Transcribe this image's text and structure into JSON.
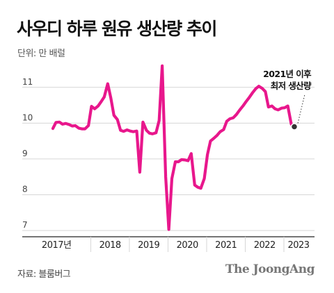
{
  "header": {
    "title": "사우디 하루 원유 생산량 추이",
    "unit": "단위: 만 배럴"
  },
  "footer": {
    "source": "자료: 블룸버그",
    "brand": "The JoongAng"
  },
  "annotation": {
    "line1": "2021년 이후",
    "line2": "최저 생산량"
  },
  "colors": {
    "line": "#e8178c",
    "grid": "#d6d6d6",
    "axis": "#222222"
  },
  "chart_data": {
    "type": "line",
    "title": "사우디 하루 원유 생산량 추이",
    "ylabel": "단위: 만 배럴",
    "xlabel": "",
    "ylim": [
      7,
      11.5
    ],
    "yticks": [
      7,
      8,
      9,
      10,
      11
    ],
    "xlim": [
      2017.0,
      2023.75
    ],
    "x_tick_labels": [
      "2017년",
      "2018",
      "2019",
      "2020",
      "2021",
      "2022",
      "2023"
    ],
    "grid": true,
    "series": [
      {
        "points": [
          [
            2017.0,
            9.85
          ],
          [
            2017.08,
            10.02
          ],
          [
            2017.17,
            10.03
          ],
          [
            2017.25,
            9.97
          ],
          [
            2017.33,
            9.99
          ],
          [
            2017.42,
            9.96
          ],
          [
            2017.5,
            9.92
          ],
          [
            2017.58,
            9.93
          ],
          [
            2017.67,
            9.86
          ],
          [
            2017.75,
            9.84
          ],
          [
            2017.83,
            9.84
          ],
          [
            2017.92,
            9.93
          ],
          [
            2018.0,
            10.47
          ],
          [
            2018.08,
            10.4
          ],
          [
            2018.17,
            10.48
          ],
          [
            2018.25,
            10.6
          ],
          [
            2018.33,
            10.73
          ],
          [
            2018.42,
            11.1
          ],
          [
            2018.5,
            10.7
          ],
          [
            2018.58,
            10.22
          ],
          [
            2018.67,
            10.1
          ],
          [
            2018.75,
            9.8
          ],
          [
            2018.83,
            9.77
          ],
          [
            2018.92,
            9.81
          ],
          [
            2019.0,
            9.78
          ],
          [
            2019.08,
            9.76
          ],
          [
            2019.17,
            9.78
          ],
          [
            2019.25,
            8.63
          ],
          [
            2019.33,
            10.03
          ],
          [
            2019.42,
            9.8
          ],
          [
            2019.5,
            9.72
          ],
          [
            2019.58,
            9.7
          ],
          [
            2019.67,
            9.73
          ],
          [
            2019.75,
            10.07
          ],
          [
            2019.83,
            11.6
          ],
          [
            2019.92,
            8.5
          ],
          [
            2020.0,
            7.03
          ],
          [
            2020.08,
            8.45
          ],
          [
            2020.17,
            8.92
          ],
          [
            2020.25,
            8.92
          ],
          [
            2020.33,
            8.98
          ],
          [
            2020.42,
            8.97
          ],
          [
            2020.5,
            8.95
          ],
          [
            2020.58,
            9.15
          ],
          [
            2020.67,
            8.27
          ],
          [
            2020.75,
            8.21
          ],
          [
            2020.83,
            8.18
          ],
          [
            2020.92,
            8.45
          ],
          [
            2021.0,
            9.12
          ],
          [
            2021.08,
            9.5
          ],
          [
            2021.17,
            9.58
          ],
          [
            2021.25,
            9.66
          ],
          [
            2021.33,
            9.76
          ],
          [
            2021.42,
            9.82
          ],
          [
            2021.5,
            10.05
          ],
          [
            2021.58,
            10.12
          ],
          [
            2021.67,
            10.15
          ],
          [
            2021.75,
            10.24
          ],
          [
            2021.83,
            10.36
          ],
          [
            2021.92,
            10.48
          ],
          [
            2022.0,
            10.6
          ],
          [
            2022.08,
            10.71
          ],
          [
            2022.17,
            10.85
          ],
          [
            2022.25,
            10.96
          ],
          [
            2022.33,
            11.03
          ],
          [
            2022.42,
            10.97
          ],
          [
            2022.5,
            10.88
          ],
          [
            2022.58,
            10.45
          ],
          [
            2022.67,
            10.48
          ],
          [
            2022.75,
            10.4
          ],
          [
            2022.83,
            10.37
          ],
          [
            2022.92,
            10.42
          ],
          [
            2023.0,
            10.43
          ],
          [
            2023.08,
            10.48
          ],
          [
            2023.17,
            9.97
          ],
          [
            2023.25,
            9.9
          ]
        ]
      }
    ]
  }
}
